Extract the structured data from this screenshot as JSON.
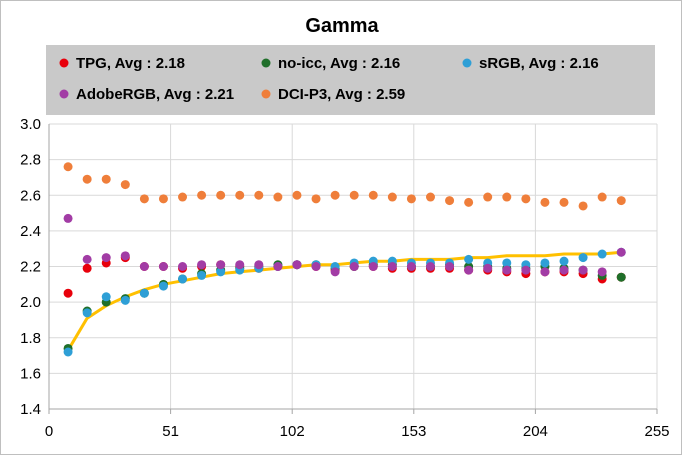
{
  "chart_data": {
    "type": "scatter",
    "title": "Gamma",
    "xlabel": "",
    "ylabel": "",
    "xlim": [
      0,
      255
    ],
    "ylim": [
      1.4,
      3.0
    ],
    "xticks": [
      0,
      51,
      102,
      153,
      204,
      255
    ],
    "yticks": [
      "1.4",
      "1.6",
      "1.8",
      "2.0",
      "2.2",
      "2.4",
      "2.6",
      "2.8",
      "3.0"
    ],
    "grid": true,
    "legend_position": "top",
    "series": [
      {
        "name": "TPG, Avg : 2.18",
        "color": "#e8000b",
        "x": [
          8,
          16,
          24,
          32,
          40,
          48,
          56,
          64,
          72,
          80,
          88,
          96,
          104,
          112,
          120,
          128,
          136,
          144,
          152,
          160,
          168,
          176,
          184,
          192,
          200,
          208,
          216,
          224,
          232,
          240
        ],
        "y": [
          2.05,
          2.19,
          2.22,
          2.25,
          2.2,
          2.2,
          2.19,
          2.2,
          2.21,
          2.2,
          2.19,
          2.2,
          2.21,
          2.2,
          2.18,
          2.2,
          2.2,
          2.19,
          2.19,
          2.19,
          2.19,
          2.18,
          2.18,
          2.17,
          2.16,
          2.17,
          2.17,
          2.16,
          2.13,
          2.14
        ]
      },
      {
        "name": "no-icc, Avg : 2.16",
        "color": "#1f6f2a",
        "x": [
          8,
          16,
          24,
          32,
          40,
          48,
          56,
          64,
          72,
          80,
          88,
          96,
          104,
          112,
          120,
          128,
          136,
          144,
          152,
          160,
          168,
          176,
          184,
          192,
          200,
          208,
          216,
          224,
          232,
          240
        ],
        "y": [
          1.74,
          1.95,
          2.0,
          2.02,
          2.05,
          2.1,
          2.13,
          2.16,
          2.18,
          2.19,
          2.2,
          2.21,
          2.21,
          2.21,
          2.19,
          2.2,
          2.21,
          2.21,
          2.2,
          2.2,
          2.21,
          2.2,
          2.2,
          2.19,
          2.19,
          2.2,
          2.19,
          2.18,
          2.15,
          2.14
        ]
      },
      {
        "name": "sRGB, Avg : 2.16",
        "color": "#2e9fd6",
        "x": [
          8,
          16,
          24,
          32,
          40,
          48,
          56,
          64,
          72,
          80,
          88,
          96,
          104,
          112,
          120,
          128,
          136,
          144,
          152,
          160,
          168,
          176,
          184,
          192,
          200,
          208,
          216,
          224,
          232,
          240
        ],
        "y": [
          1.72,
          1.94,
          2.03,
          2.01,
          2.05,
          2.09,
          2.13,
          2.15,
          2.17,
          2.18,
          2.19,
          2.2,
          2.21,
          2.21,
          2.2,
          2.22,
          2.23,
          2.23,
          2.22,
          2.22,
          2.22,
          2.24,
          2.22,
          2.22,
          2.21,
          2.22,
          2.23,
          2.25,
          2.27,
          2.28
        ]
      },
      {
        "name": "AdobeRGB, Avg : 2.21",
        "color": "#a23ca5",
        "x": [
          8,
          16,
          24,
          32,
          40,
          48,
          56,
          64,
          72,
          80,
          88,
          96,
          104,
          112,
          120,
          128,
          136,
          144,
          152,
          160,
          168,
          176,
          184,
          192,
          200,
          208,
          216,
          224,
          232,
          240
        ],
        "y": [
          2.47,
          2.24,
          2.25,
          2.26,
          2.2,
          2.2,
          2.2,
          2.21,
          2.21,
          2.21,
          2.21,
          2.2,
          2.21,
          2.2,
          2.17,
          2.2,
          2.2,
          2.2,
          2.2,
          2.2,
          2.2,
          2.18,
          2.19,
          2.18,
          2.18,
          2.17,
          2.18,
          2.18,
          2.17,
          2.28
        ]
      },
      {
        "name": "DCI-P3, Avg : 2.59",
        "color": "#ef7e3a",
        "x": [
          8,
          16,
          24,
          32,
          40,
          48,
          56,
          64,
          72,
          80,
          88,
          96,
          104,
          112,
          120,
          128,
          136,
          144,
          152,
          160,
          168,
          176,
          184,
          192,
          200,
          208,
          216,
          224,
          232,
          240
        ],
        "y": [
          2.76,
          2.69,
          2.69,
          2.66,
          2.58,
          2.58,
          2.59,
          2.6,
          2.6,
          2.6,
          2.6,
          2.59,
          2.6,
          2.58,
          2.6,
          2.6,
          2.6,
          2.59,
          2.58,
          2.59,
          2.57,
          2.56,
          2.59,
          2.59,
          2.58,
          2.56,
          2.56,
          2.54,
          2.59,
          2.57
        ]
      }
    ],
    "trend_line": {
      "color": "#ffc000",
      "x": [
        8,
        16,
        24,
        32,
        40,
        48,
        56,
        64,
        72,
        80,
        88,
        96,
        104,
        112,
        120,
        128,
        136,
        144,
        152,
        160,
        168,
        176,
        184,
        192,
        200,
        208,
        216,
        224,
        232,
        240
      ],
      "y": [
        1.73,
        1.91,
        1.98,
        2.03,
        2.07,
        2.1,
        2.12,
        2.14,
        2.16,
        2.17,
        2.18,
        2.19,
        2.2,
        2.21,
        2.21,
        2.22,
        2.23,
        2.23,
        2.24,
        2.24,
        2.24,
        2.25,
        2.25,
        2.26,
        2.26,
        2.26,
        2.27,
        2.27,
        2.27,
        2.28
      ]
    }
  }
}
